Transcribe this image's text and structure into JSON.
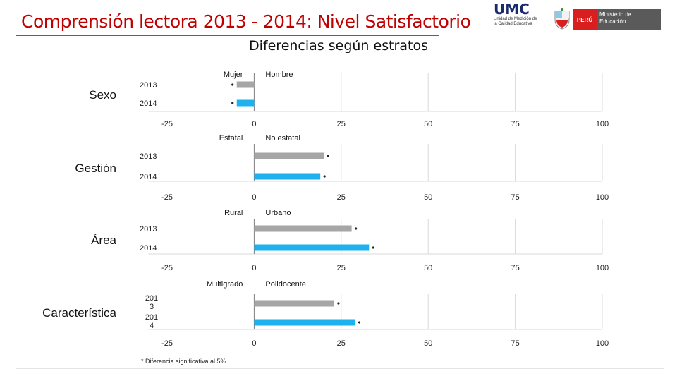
{
  "title": "Comprensión lectora 2013 - 2014: Nivel Satisfactorio",
  "subtitle": "Diferencias según estratos",
  "logos": {
    "umc": "UMC",
    "umc_sub": "Unidad de Medición de la Calidad Educativa",
    "peru": "PERÚ",
    "ministry": "Ministerio de Educación"
  },
  "footnote": "* Diferencia significativa al 5%",
  "colors": {
    "y2013": "#a6a6a6",
    "y2014": "#1fb0ee",
    "grid": "#d9d9d9",
    "axis": "#7f7f7f"
  },
  "chart_data": [
    {
      "type": "bar",
      "orientation": "horizontal",
      "group": "Sexo",
      "left_label": "Mujer",
      "right_label": "Hombre",
      "categories": [
        "2013",
        "2014"
      ],
      "values": [
        -5,
        -5
      ],
      "xticks": [
        "-25",
        "0",
        "25",
        "50",
        "75",
        "100"
      ],
      "xlim": [
        -25,
        100
      ]
    },
    {
      "type": "bar",
      "orientation": "horizontal",
      "group": "Gestión",
      "left_label": "Estatal",
      "right_label": "No estatal",
      "categories": [
        "2013",
        "2014"
      ],
      "values": [
        20,
        19
      ],
      "xticks": [
        "-25",
        "0",
        "25",
        "50",
        "75",
        "100"
      ],
      "xlim": [
        -25,
        100
      ]
    },
    {
      "type": "bar",
      "orientation": "horizontal",
      "group": "Área",
      "left_label": "Rural",
      "right_label": "Urbano",
      "categories": [
        "2013",
        "2014"
      ],
      "values": [
        28,
        33
      ],
      "xticks": [
        "-25",
        "0",
        "25",
        "50",
        "75",
        "100"
      ],
      "xlim": [
        -25,
        100
      ]
    },
    {
      "type": "bar",
      "orientation": "horizontal",
      "group": "Característica",
      "left_label": "Multigrado",
      "right_label": "Polidocente",
      "categories": [
        "201\n3",
        "201\n4"
      ],
      "values": [
        23,
        29
      ],
      "xticks": [
        "-25",
        "0",
        "25",
        "50",
        "75",
        "100"
      ],
      "xlim": [
        -25,
        100
      ]
    }
  ]
}
